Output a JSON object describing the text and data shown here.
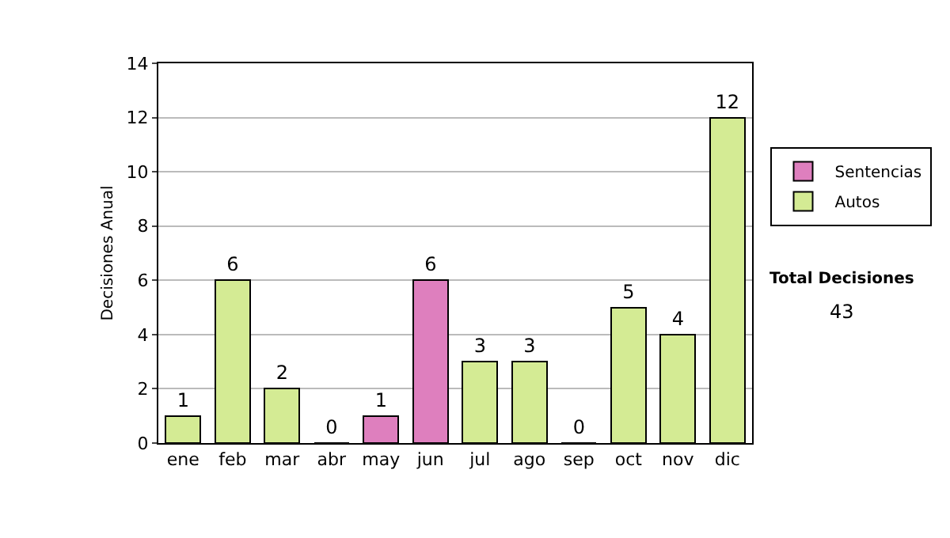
{
  "chart_data": {
    "type": "bar",
    "ylabel": "Decisiones Anual",
    "categories": [
      "ene",
      "feb",
      "mar",
      "abr",
      "may",
      "jun",
      "jul",
      "ago",
      "sep",
      "oct",
      "nov",
      "dic"
    ],
    "series": [
      {
        "name": "Sentencias",
        "color": "#de7fbe",
        "values": [
          null,
          null,
          null,
          null,
          1,
          6,
          null,
          null,
          null,
          null,
          null,
          null
        ]
      },
      {
        "name": "Autos",
        "color": "#d4eb94",
        "values": [
          1,
          6,
          2,
          0,
          null,
          null,
          3,
          3,
          0,
          5,
          4,
          12
        ]
      }
    ],
    "stacked": true,
    "ylim": [
      0,
      14
    ],
    "yticks": [
      0,
      2,
      4,
      6,
      8,
      10,
      12,
      14
    ],
    "grid": "y",
    "legend": "right",
    "data_labels": true,
    "annotations": [
      "Total Decisiones",
      "43"
    ]
  }
}
